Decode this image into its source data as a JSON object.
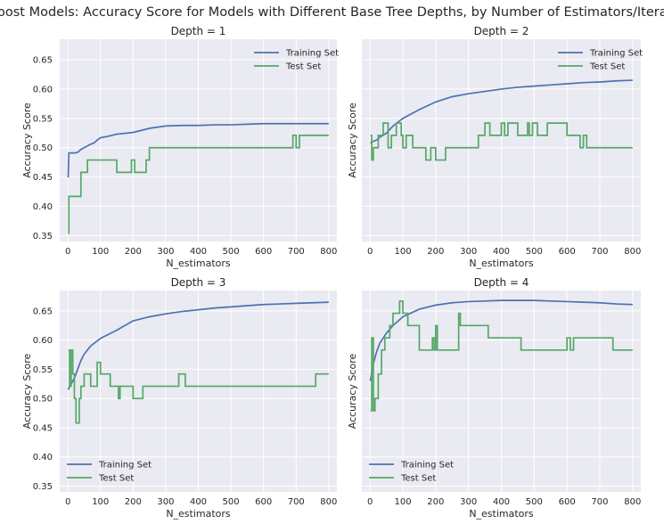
{
  "figure": {
    "title": "Adaboost Models: Accuracy Score for Models with Different Base Tree Depths, by Number of Estimators/Iterations",
    "colors": {
      "training": "#4c72b0",
      "test": "#55a868",
      "axes_bg": "#eaeaf2",
      "grid": "#ffffff"
    }
  },
  "chart_data": [
    {
      "type": "line",
      "title": "Depth = 1",
      "xlabel": "N_estimators",
      "ylabel": "Accuracy Score",
      "xlim": [
        -25,
        825
      ],
      "ylim": [
        0.34,
        0.685
      ],
      "xticks": [
        0,
        100,
        200,
        300,
        400,
        500,
        600,
        700,
        800
      ],
      "yticks": [
        0.35,
        0.4,
        0.45,
        0.5,
        0.55,
        0.6,
        0.65
      ],
      "show_y_ticklabels": true,
      "grid": true,
      "legend": "top-right",
      "series": [
        {
          "name": "Training Set",
          "step": false,
          "x": [
            1,
            3,
            10,
            20,
            30,
            40,
            50,
            60,
            70,
            80,
            90,
            100,
            120,
            150,
            200,
            250,
            300,
            350,
            400,
            450,
            500,
            550,
            600,
            650,
            700,
            750,
            800
          ],
          "y": [
            0.449,
            0.491,
            0.491,
            0.491,
            0.492,
            0.497,
            0.5,
            0.503,
            0.506,
            0.508,
            0.513,
            0.517,
            0.519,
            0.523,
            0.526,
            0.533,
            0.537,
            0.538,
            0.538,
            0.539,
            0.539,
            0.54,
            0.541,
            0.541,
            0.541,
            0.541,
            0.541
          ]
        },
        {
          "name": "Test Set",
          "step": true,
          "x": [
            1,
            3,
            40,
            60,
            150,
            195,
            205,
            240,
            250,
            690,
            700,
            710,
            800
          ],
          "y": [
            0.354,
            0.417,
            0.458,
            0.479,
            0.458,
            0.479,
            0.458,
            0.479,
            0.5,
            0.521,
            0.5,
            0.521,
            0.521
          ]
        }
      ]
    },
    {
      "type": "line",
      "title": "Depth = 2",
      "xlabel": "N_estimators",
      "ylabel": "Accuracy Score",
      "xlim": [
        -25,
        825
      ],
      "ylim": [
        0.34,
        0.685
      ],
      "xticks": [
        0,
        100,
        200,
        300,
        400,
        500,
        600,
        700,
        800
      ],
      "yticks": [
        0.35,
        0.4,
        0.45,
        0.5,
        0.55,
        0.6,
        0.65
      ],
      "show_y_ticklabels": false,
      "grid": true,
      "legend": "top-right",
      "series": [
        {
          "name": "Training Set",
          "step": false,
          "x": [
            1,
            10,
            20,
            30,
            50,
            70,
            100,
            150,
            200,
            250,
            300,
            350,
            400,
            450,
            500,
            550,
            600,
            650,
            700,
            750,
            800
          ],
          "y": [
            0.508,
            0.511,
            0.513,
            0.518,
            0.525,
            0.537,
            0.55,
            0.565,
            0.578,
            0.587,
            0.592,
            0.596,
            0.6,
            0.603,
            0.605,
            0.607,
            0.609,
            0.611,
            0.612,
            0.614,
            0.615
          ]
        },
        {
          "name": "Test Set",
          "step": true,
          "x": [
            1,
            5,
            10,
            25,
            40,
            55,
            65,
            80,
            95,
            100,
            110,
            130,
            170,
            185,
            200,
            230,
            330,
            350,
            365,
            400,
            410,
            420,
            450,
            480,
            485,
            495,
            510,
            540,
            600,
            640,
            650,
            660,
            710,
            800
          ],
          "y": [
            0.521,
            0.479,
            0.5,
            0.521,
            0.542,
            0.5,
            0.521,
            0.542,
            0.521,
            0.5,
            0.521,
            0.5,
            0.479,
            0.5,
            0.479,
            0.5,
            0.521,
            0.542,
            0.521,
            0.542,
            0.521,
            0.542,
            0.521,
            0.542,
            0.521,
            0.542,
            0.521,
            0.542,
            0.521,
            0.5,
            0.521,
            0.5,
            0.5,
            0.5
          ]
        }
      ]
    },
    {
      "type": "line",
      "title": "Depth = 3",
      "xlabel": "N_estimators",
      "ylabel": "Accuracy Score",
      "xlim": [
        -25,
        825
      ],
      "ylim": [
        0.34,
        0.685
      ],
      "xticks": [
        0,
        100,
        200,
        300,
        400,
        500,
        600,
        700,
        800
      ],
      "yticks": [
        0.35,
        0.4,
        0.45,
        0.5,
        0.55,
        0.6,
        0.65
      ],
      "show_y_ticklabels": true,
      "grid": true,
      "legend": "bottom-left",
      "series": [
        {
          "name": "Training Set",
          "step": false,
          "x": [
            1,
            5,
            10,
            20,
            30,
            40,
            50,
            70,
            100,
            150,
            200,
            250,
            300,
            350,
            400,
            450,
            500,
            550,
            600,
            650,
            700,
            750,
            800
          ],
          "y": [
            0.515,
            0.52,
            0.525,
            0.535,
            0.55,
            0.565,
            0.576,
            0.59,
            0.603,
            0.617,
            0.633,
            0.64,
            0.645,
            0.649,
            0.652,
            0.655,
            0.657,
            0.659,
            0.661,
            0.662,
            0.663,
            0.664,
            0.665
          ]
        },
        {
          "name": "Test Set",
          "step": true,
          "x": [
            1,
            5,
            10,
            15,
            20,
            25,
            35,
            40,
            50,
            70,
            90,
            100,
            130,
            155,
            160,
            200,
            230,
            340,
            360,
            760,
            800
          ],
          "y": [
            0.583,
            0.521,
            0.583,
            0.542,
            0.5,
            0.458,
            0.5,
            0.521,
            0.542,
            0.521,
            0.562,
            0.542,
            0.521,
            0.5,
            0.521,
            0.5,
            0.521,
            0.542,
            0.521,
            0.542,
            0.542
          ]
        }
      ]
    },
    {
      "type": "line",
      "title": "Depth = 4",
      "xlabel": "N_estimators",
      "ylabel": "Accuracy Score",
      "xlim": [
        -25,
        825
      ],
      "ylim": [
        0.34,
        0.685
      ],
      "xticks": [
        0,
        100,
        200,
        300,
        400,
        500,
        600,
        700,
        800
      ],
      "yticks": [
        0.35,
        0.4,
        0.45,
        0.5,
        0.55,
        0.6,
        0.65
      ],
      "show_y_ticklabels": false,
      "grid": true,
      "legend": "bottom-left",
      "series": [
        {
          "name": "Training Set",
          "step": false,
          "x": [
            1,
            5,
            10,
            20,
            30,
            50,
            70,
            100,
            150,
            200,
            250,
            300,
            350,
            400,
            450,
            500,
            550,
            600,
            650,
            700,
            750,
            800
          ],
          "y": [
            0.53,
            0.545,
            0.56,
            0.58,
            0.595,
            0.612,
            0.625,
            0.64,
            0.653,
            0.66,
            0.664,
            0.666,
            0.667,
            0.668,
            0.668,
            0.668,
            0.667,
            0.666,
            0.665,
            0.664,
            0.662,
            0.661
          ]
        },
        {
          "name": "Test Set",
          "step": true,
          "x": [
            1,
            5,
            10,
            15,
            25,
            35,
            45,
            60,
            70,
            90,
            100,
            115,
            150,
            190,
            195,
            200,
            205,
            270,
            275,
            300,
            360,
            370,
            460,
            600,
            610,
            620,
            740,
            800
          ],
          "y": [
            0.479,
            0.604,
            0.479,
            0.5,
            0.542,
            0.583,
            0.604,
            0.625,
            0.646,
            0.667,
            0.646,
            0.625,
            0.583,
            0.604,
            0.583,
            0.625,
            0.583,
            0.646,
            0.625,
            0.625,
            0.604,
            0.604,
            0.583,
            0.604,
            0.583,
            0.604,
            0.583,
            0.583
          ]
        }
      ]
    }
  ]
}
